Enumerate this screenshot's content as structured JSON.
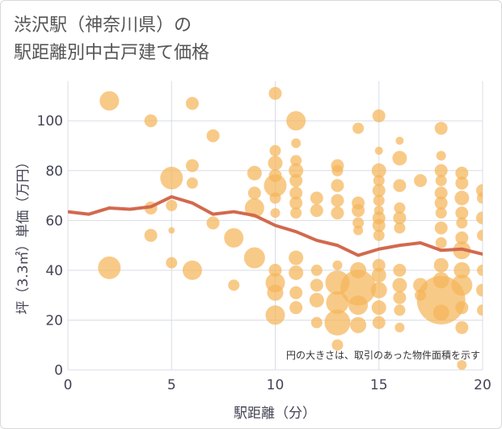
{
  "chart_data": {
    "type": "scatter",
    "title_lines": [
      "渋沢駅（神奈川県）の",
      "駅距離別中古戸建て価格"
    ],
    "xlabel": "駅距離（分）",
    "ylabel": "坪（3.3㎡）単価（万円）",
    "xlim": [
      0,
      20
    ],
    "ylim": [
      0,
      116
    ],
    "xticks": [
      0,
      5,
      10,
      15,
      20
    ],
    "yticks": [
      0,
      20,
      40,
      60,
      80,
      100
    ],
    "grid": true,
    "note": "円の大きさは、取引のあった物件面積を示す",
    "colors": {
      "bubble": "#f5b55a",
      "line": "#d2694e",
      "grid": "#d8dde6"
    },
    "bubbles": [
      {
        "x": 2,
        "y": 108,
        "r": 12
      },
      {
        "x": 4,
        "y": 100,
        "r": 8
      },
      {
        "x": 6,
        "y": 107,
        "r": 8
      },
      {
        "x": 10,
        "y": 111,
        "r": 8
      },
      {
        "x": 11,
        "y": 100,
        "r": 12
      },
      {
        "x": 15,
        "y": 102,
        "r": 8
      },
      {
        "x": 14,
        "y": 97,
        "r": 7
      },
      {
        "x": 18,
        "y": 97,
        "r": 8
      },
      {
        "x": 7,
        "y": 94,
        "r": 8
      },
      {
        "x": 11,
        "y": 91,
        "r": 6
      },
      {
        "x": 16,
        "y": 92,
        "r": 5
      },
      {
        "x": 10,
        "y": 88,
        "r": 7
      },
      {
        "x": 15,
        "y": 88,
        "r": 5
      },
      {
        "x": 16,
        "y": 85,
        "r": 9
      },
      {
        "x": 18,
        "y": 86,
        "r": 6
      },
      {
        "x": 5,
        "y": 77,
        "r": 14
      },
      {
        "x": 6,
        "y": 82,
        "r": 8
      },
      {
        "x": 6,
        "y": 75,
        "r": 7
      },
      {
        "x": 9,
        "y": 79,
        "r": 9
      },
      {
        "x": 9,
        "y": 71,
        "r": 8
      },
      {
        "x": 10,
        "y": 83,
        "r": 9
      },
      {
        "x": 10,
        "y": 78,
        "r": 8
      },
      {
        "x": 10,
        "y": 74,
        "r": 14
      },
      {
        "x": 10,
        "y": 69,
        "r": 7
      },
      {
        "x": 10,
        "y": 63,
        "r": 6
      },
      {
        "x": 11,
        "y": 84,
        "r": 7
      },
      {
        "x": 11,
        "y": 80,
        "r": 9
      },
      {
        "x": 11,
        "y": 76,
        "r": 8
      },
      {
        "x": 11,
        "y": 71,
        "r": 8
      },
      {
        "x": 11,
        "y": 67,
        "r": 8
      },
      {
        "x": 11,
        "y": 63,
        "r": 7
      },
      {
        "x": 12,
        "y": 69,
        "r": 8
      },
      {
        "x": 12,
        "y": 64,
        "r": 8
      },
      {
        "x": 13,
        "y": 82,
        "r": 8
      },
      {
        "x": 13,
        "y": 80,
        "r": 7
      },
      {
        "x": 13,
        "y": 74,
        "r": 8
      },
      {
        "x": 13,
        "y": 68,
        "r": 8
      },
      {
        "x": 13,
        "y": 63,
        "r": 8
      },
      {
        "x": 14,
        "y": 67,
        "r": 8
      },
      {
        "x": 14,
        "y": 64,
        "r": 8
      },
      {
        "x": 14,
        "y": 59,
        "r": 7
      },
      {
        "x": 14,
        "y": 56,
        "r": 6
      },
      {
        "x": 15,
        "y": 80,
        "r": 9
      },
      {
        "x": 15,
        "y": 76,
        "r": 7
      },
      {
        "x": 15,
        "y": 72,
        "r": 8
      },
      {
        "x": 15,
        "y": 68,
        "r": 7
      },
      {
        "x": 15,
        "y": 64,
        "r": 6
      },
      {
        "x": 15,
        "y": 61,
        "r": 8
      },
      {
        "x": 15,
        "y": 58,
        "r": 8
      },
      {
        "x": 15,
        "y": 54,
        "r": 7
      },
      {
        "x": 16,
        "y": 74,
        "r": 8
      },
      {
        "x": 16,
        "y": 65,
        "r": 7
      },
      {
        "x": 16,
        "y": 61,
        "r": 8
      },
      {
        "x": 16,
        "y": 57,
        "r": 7
      },
      {
        "x": 17,
        "y": 76,
        "r": 8
      },
      {
        "x": 18,
        "y": 80,
        "r": 8
      },
      {
        "x": 18,
        "y": 76,
        "r": 7
      },
      {
        "x": 18,
        "y": 71,
        "r": 8
      },
      {
        "x": 18,
        "y": 67,
        "r": 8
      },
      {
        "x": 18,
        "y": 63,
        "r": 7
      },
      {
        "x": 18,
        "y": 57,
        "r": 8
      },
      {
        "x": 18,
        "y": 51,
        "r": 7
      },
      {
        "x": 19,
        "y": 79,
        "r": 8
      },
      {
        "x": 19,
        "y": 75,
        "r": 8
      },
      {
        "x": 19,
        "y": 69,
        "r": 9
      },
      {
        "x": 19,
        "y": 63,
        "r": 8
      },
      {
        "x": 19,
        "y": 59,
        "r": 7
      },
      {
        "x": 19,
        "y": 53,
        "r": 8
      },
      {
        "x": 19,
        "y": 48,
        "r": 11
      },
      {
        "x": 20,
        "y": 72,
        "r": 8
      },
      {
        "x": 20,
        "y": 69,
        "r": 7
      },
      {
        "x": 20,
        "y": 61,
        "r": 8
      },
      {
        "x": 20,
        "y": 54,
        "r": 7
      },
      {
        "x": 4,
        "y": 65,
        "r": 8
      },
      {
        "x": 5,
        "y": 66,
        "r": 7
      },
      {
        "x": 5,
        "y": 56,
        "r": 4
      },
      {
        "x": 4,
        "y": 54,
        "r": 8
      },
      {
        "x": 7,
        "y": 59,
        "r": 8
      },
      {
        "x": 8,
        "y": 53,
        "r": 12
      },
      {
        "x": 9,
        "y": 65,
        "r": 12
      },
      {
        "x": 2,
        "y": 41,
        "r": 14
      },
      {
        "x": 5,
        "y": 43,
        "r": 7
      },
      {
        "x": 6,
        "y": 40,
        "r": 12
      },
      {
        "x": 8,
        "y": 34,
        "r": 7
      },
      {
        "x": 9,
        "y": 45,
        "r": 13
      },
      {
        "x": 10,
        "y": 40,
        "r": 8
      },
      {
        "x": 10,
        "y": 35,
        "r": 12
      },
      {
        "x": 10,
        "y": 31,
        "r": 10
      },
      {
        "x": 10,
        "y": 22,
        "r": 12
      },
      {
        "x": 11,
        "y": 45,
        "r": 9
      },
      {
        "x": 11,
        "y": 39,
        "r": 9
      },
      {
        "x": 11,
        "y": 31,
        "r": 8
      },
      {
        "x": 11,
        "y": 25,
        "r": 8
      },
      {
        "x": 12,
        "y": 40,
        "r": 7
      },
      {
        "x": 12,
        "y": 34,
        "r": 8
      },
      {
        "x": 12,
        "y": 28,
        "r": 9
      },
      {
        "x": 12,
        "y": 19,
        "r": 7
      },
      {
        "x": 13,
        "y": 42,
        "r": 6
      },
      {
        "x": 13,
        "y": 35,
        "r": 15
      },
      {
        "x": 13,
        "y": 27,
        "r": 14
      },
      {
        "x": 13,
        "y": 19,
        "r": 16
      },
      {
        "x": 13,
        "y": 10,
        "r": 7
      },
      {
        "x": 14,
        "y": 40,
        "r": 10
      },
      {
        "x": 14,
        "y": 33,
        "r": 22
      },
      {
        "x": 14,
        "y": 26,
        "r": 12
      },
      {
        "x": 14,
        "y": 18,
        "r": 10
      },
      {
        "x": 15,
        "y": 42,
        "r": 8
      },
      {
        "x": 15,
        "y": 38,
        "r": 9
      },
      {
        "x": 15,
        "y": 32,
        "r": 10
      },
      {
        "x": 15,
        "y": 25,
        "r": 9
      },
      {
        "x": 15,
        "y": 19,
        "r": 8
      },
      {
        "x": 16,
        "y": 40,
        "r": 8
      },
      {
        "x": 16,
        "y": 34,
        "r": 9
      },
      {
        "x": 16,
        "y": 29,
        "r": 8
      },
      {
        "x": 16,
        "y": 24,
        "r": 7
      },
      {
        "x": 16,
        "y": 17,
        "r": 6
      },
      {
        "x": 17,
        "y": 34,
        "r": 9
      },
      {
        "x": 17,
        "y": 30,
        "r": 7
      },
      {
        "x": 18,
        "y": 42,
        "r": 9
      },
      {
        "x": 18,
        "y": 36,
        "r": 10
      },
      {
        "x": 18,
        "y": 28,
        "r": 30
      },
      {
        "x": 18,
        "y": 23,
        "r": 10
      },
      {
        "x": 19,
        "y": 40,
        "r": 10
      },
      {
        "x": 19,
        "y": 34,
        "r": 13
      },
      {
        "x": 19,
        "y": 25,
        "r": 8
      },
      {
        "x": 19,
        "y": 17,
        "r": 8
      },
      {
        "x": 19,
        "y": 2,
        "r": 6
      },
      {
        "x": 20,
        "y": 40,
        "r": 7
      },
      {
        "x": 20,
        "y": 32,
        "r": 8
      },
      {
        "x": 20,
        "y": 24,
        "r": 7
      }
    ],
    "trend": {
      "x": [
        0,
        1,
        2,
        3,
        4,
        5,
        6,
        7,
        8,
        9,
        10,
        11,
        12,
        13,
        14,
        15,
        16,
        17,
        18,
        19,
        20
      ],
      "y": [
        63.5,
        62.5,
        65,
        64.5,
        65.5,
        69.5,
        67,
        62.5,
        63.5,
        62,
        58,
        55.5,
        52,
        50,
        46,
        48.5,
        50,
        51,
        48,
        48.5,
        46.5
      ]
    }
  }
}
